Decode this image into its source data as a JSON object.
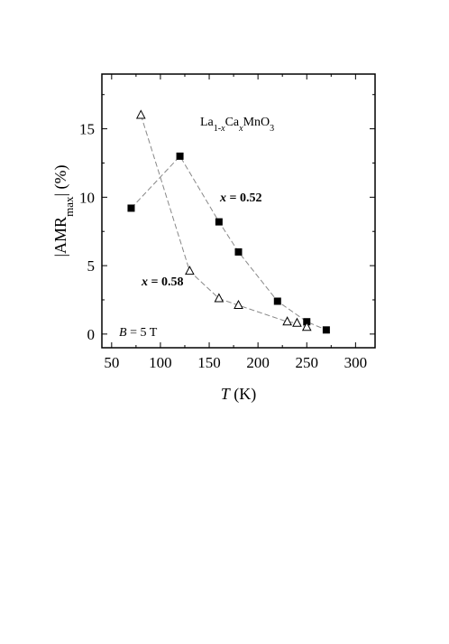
{
  "chart_data": {
    "type": "scatter",
    "x_label": {
      "italic": "T",
      "rest": " (K)"
    },
    "y_label": {
      "pre": "|AMR",
      "sub": "max",
      "post": "| (%)"
    },
    "xlim": [
      40,
      320
    ],
    "ylim": [
      -1,
      19
    ],
    "x_ticks": [
      50,
      100,
      150,
      200,
      250,
      300
    ],
    "y_ticks": [
      0,
      5,
      10,
      15
    ],
    "formula": {
      "a": "La",
      "b": "1-",
      "c": "x",
      "d": "Ca",
      "e": "x",
      "f": "MnO",
      "g": "3"
    },
    "field": {
      "italic": "B",
      "rest": " = 5 T"
    },
    "series": [
      {
        "label": {
          "var": "x",
          "rest": " = 0.52"
        },
        "marker": "filled-square",
        "x": [
          70,
          120,
          160,
          180,
          220,
          250,
          270
        ],
        "y": [
          9.2,
          13.0,
          8.2,
          6.0,
          2.4,
          0.9,
          0.3
        ]
      },
      {
        "label": {
          "var": "x",
          "rest": " = 0.58"
        },
        "marker": "open-triangle",
        "x": [
          80,
          130,
          160,
          180,
          230,
          240,
          250
        ],
        "y": [
          16.0,
          4.6,
          2.6,
          2.1,
          0.9,
          0.8,
          0.5
        ]
      }
    ],
    "line_color": "#888888",
    "marker_color": "#000000"
  }
}
